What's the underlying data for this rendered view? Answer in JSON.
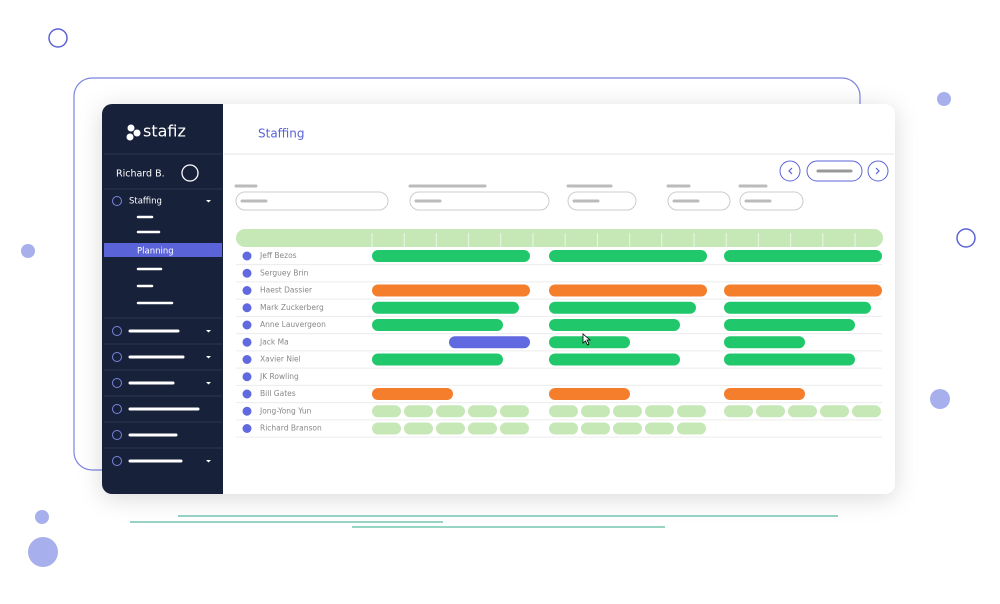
{
  "app": {
    "logo": "stafiz",
    "user": "Richard B.",
    "nav": {
      "section": "Staffing",
      "active": "Planning"
    }
  },
  "header": {
    "title": "Staffing"
  },
  "planning": {
    "people": [
      "Jeff Bezos",
      "Serguey Brin",
      "Haest Dassier",
      "Mark Zuckerberg",
      "Anne Lauvergeon",
      "Jack Ma",
      "Xavier Niel",
      "JK Rowling",
      "Bill Gates",
      "Jong-Yong Yun",
      "Richard Branson"
    ]
  }
}
